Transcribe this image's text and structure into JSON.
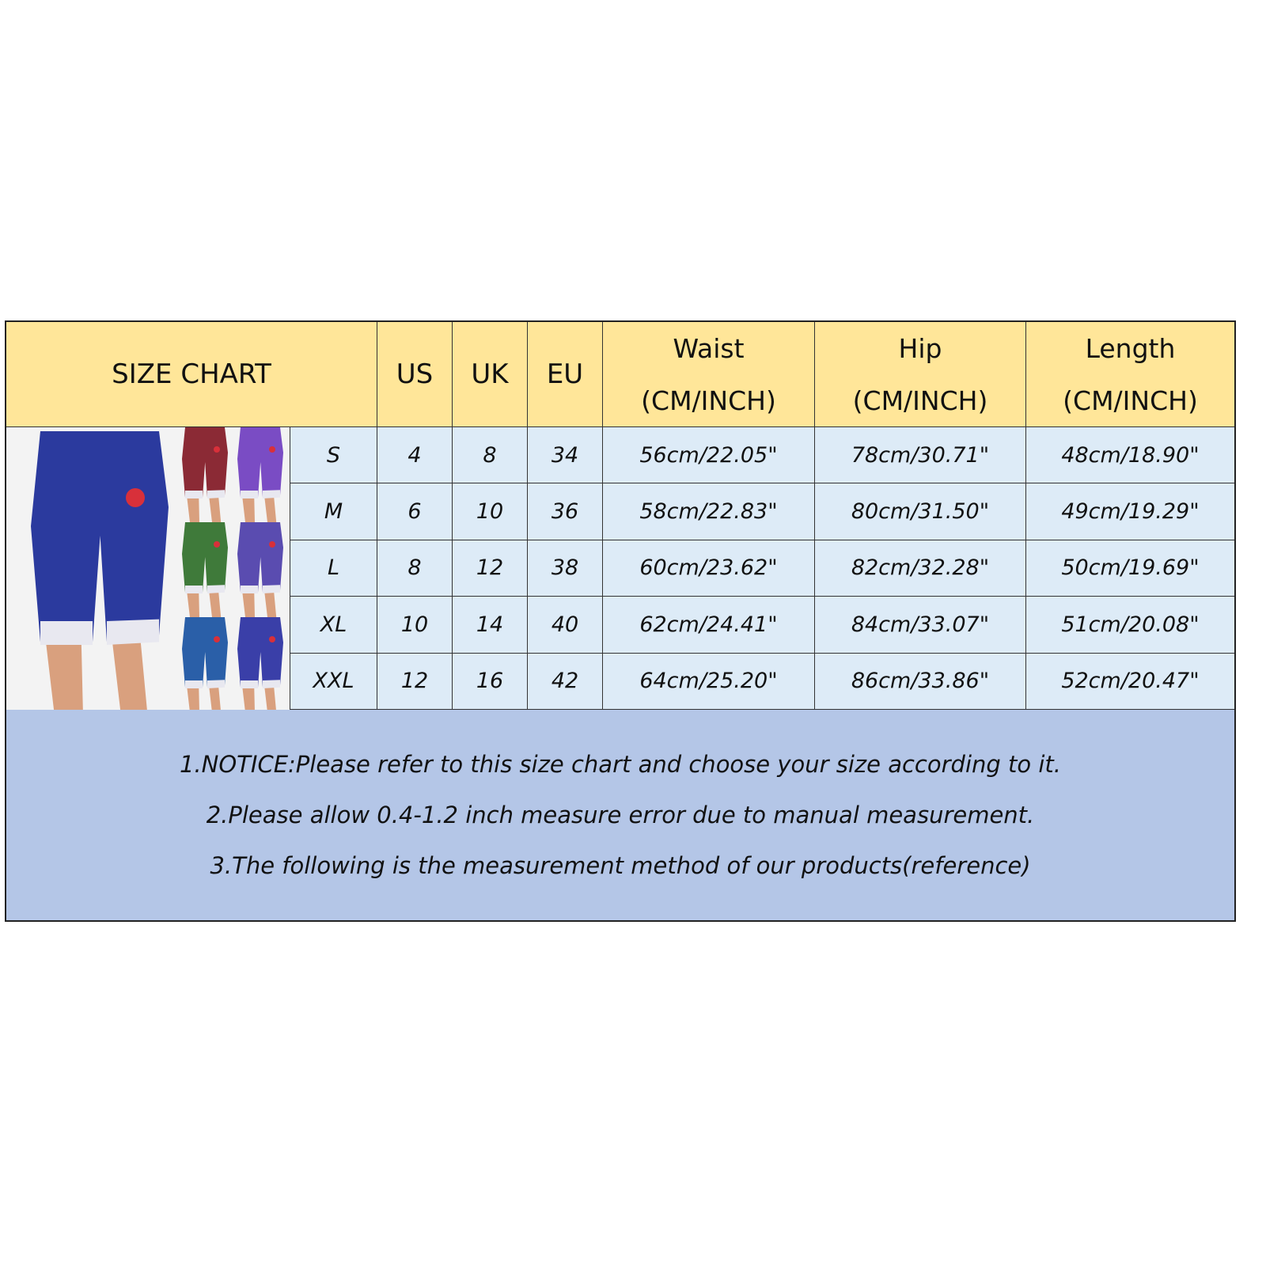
{
  "title": "SIZE CHART",
  "columns": {
    "us": "US",
    "uk": "UK",
    "eu": "EU",
    "waist": "Waist",
    "hip": "Hip",
    "length": "Length",
    "unit": "(CM/INCH)"
  },
  "rows": [
    {
      "size": "S",
      "us": "4",
      "uk": "8",
      "eu": "34",
      "waist": "56cm/22.05\"",
      "hip": "78cm/30.71\"",
      "length": "48cm/18.90\""
    },
    {
      "size": "M",
      "us": "6",
      "uk": "10",
      "eu": "36",
      "waist": "58cm/22.83\"",
      "hip": "80cm/31.50\"",
      "length": "49cm/19.29\""
    },
    {
      "size": "L",
      "us": "8",
      "uk": "12",
      "eu": "38",
      "waist": "60cm/23.62\"",
      "hip": "82cm/32.28\"",
      "length": "50cm/19.69\""
    },
    {
      "size": "XL",
      "us": "10",
      "uk": "14",
      "eu": "40",
      "waist": "62cm/24.41\"",
      "hip": "84cm/33.07\"",
      "length": "51cm/20.08\""
    },
    {
      "size": "XXL",
      "us": "12",
      "uk": "16",
      "eu": "42",
      "waist": "64cm/25.20\"",
      "hip": "86cm/33.86\"",
      "length": "52cm/20.47\""
    }
  ],
  "notices": [
    "1.NOTICE:Please refer to this size chart and choose your size according to it.",
    "2.Please allow 0.4-1.2 inch measure error due to manual measurement.",
    "3.The following is the measurement method of our products(reference)"
  ],
  "colors": {
    "header": "#FFE699",
    "rows": "#DDEBF7",
    "notice": "#B4C6E7",
    "product_variants": [
      "#2b3a9e",
      "#8b2a35",
      "#7a4cc4",
      "#3f7a3a",
      "#5a4cb0",
      "#2a5fa8",
      "#3a3fa8"
    ]
  }
}
